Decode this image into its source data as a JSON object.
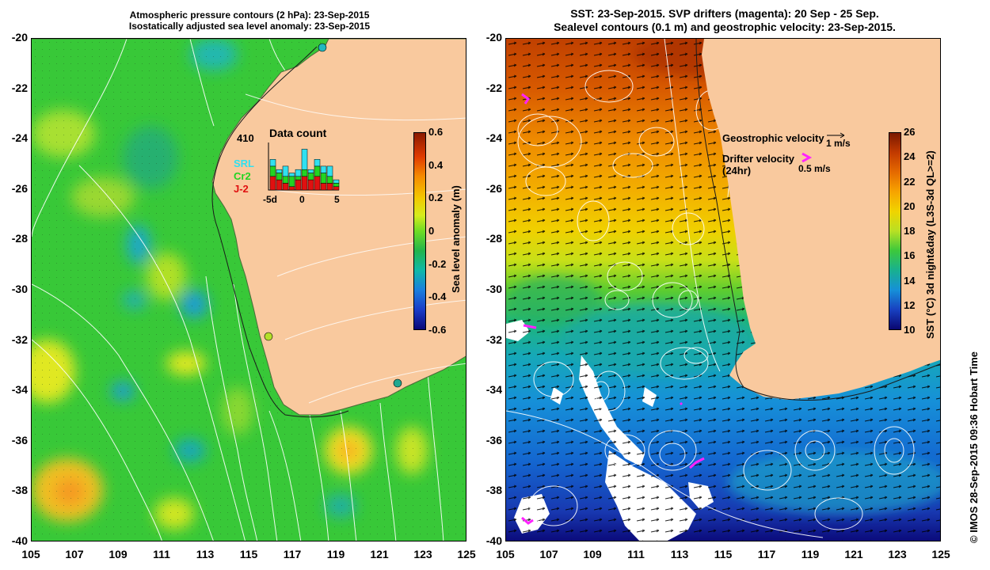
{
  "left_map": {
    "title_line1": "Atmospheric pressure contours (2 hPa): 23-Sep-2015",
    "title_line2": "Isostatically adjusted sea level anomaly: 23-Sep-2015",
    "colorbar_label": "Sea level anomaly (m)",
    "colorbar_ticks": [
      "0.6",
      "0.4",
      "0.2",
      "0",
      "-0.2",
      "-0.4",
      "-0.6"
    ],
    "inset": {
      "title": "Data count",
      "count": "410",
      "sat1": "SRL",
      "sat2": "Cr2",
      "sat3": "J-2",
      "sat1_color": "#30e0f0",
      "sat2_color": "#22d422",
      "sat3_color": "#e01010",
      "axis_ticks": [
        "-5d",
        "0",
        "5"
      ],
      "bars": [
        {
          "srl": 2,
          "cr2": 3,
          "j2": 4
        },
        {
          "srl": 1,
          "cr2": 2,
          "j2": 3
        },
        {
          "srl": 3,
          "cr2": 2,
          "j2": 2
        },
        {
          "srl": 1,
          "cr2": 3,
          "j2": 1
        },
        {
          "srl": 2,
          "cr2": 1,
          "j2": 3
        },
        {
          "srl": 6,
          "cr2": 2,
          "j2": 4
        },
        {
          "srl": 1,
          "cr2": 2,
          "j2": 3
        },
        {
          "srl": 2,
          "cr2": 3,
          "j2": 4
        },
        {
          "srl": 2,
          "cr2": 3,
          "j2": 2
        },
        {
          "srl": 3,
          "cr2": 2,
          "j2": 2
        },
        {
          "srl": 1,
          "cr2": 1,
          "j2": 1
        }
      ]
    }
  },
  "right_map": {
    "title_line1": "SST: 23-Sep-2015. SVP drifters (magenta): 20 Sep - 25 Sep.",
    "title_line2": "Sealevel contours (0.1 m) and geostrophic velocity: 23-Sep-2015.",
    "colorbar_label": "SST (°C) 3d night&day (L3S-3d QL>=2)",
    "colorbar_ticks": [
      "26",
      "24",
      "22",
      "20",
      "18",
      "16",
      "14",
      "12",
      "10"
    ],
    "legend_geo": "Geostrophic velocity",
    "legend_geo_speed": "1 m/s",
    "legend_drifter_line1": "Drifter velocity",
    "legend_drifter_line2": "(24hr)",
    "legend_drifter_speed": "0.5 m/s",
    "drifter_color": "#ff22ff"
  },
  "axes": {
    "y_ticks": [
      "-20",
      "-22",
      "-24",
      "-26",
      "-28",
      "-30",
      "-32",
      "-34",
      "-36",
      "-38",
      "-40"
    ],
    "x_ticks": [
      "105",
      "107",
      "109",
      "111",
      "113",
      "115",
      "117",
      "119",
      "121",
      "123",
      "125"
    ]
  },
  "credit": "© IMOS 28-Sep-2015 09:36 Hobart Time",
  "colors": {
    "land": "#f9c99e",
    "missing": "#ffffff"
  }
}
